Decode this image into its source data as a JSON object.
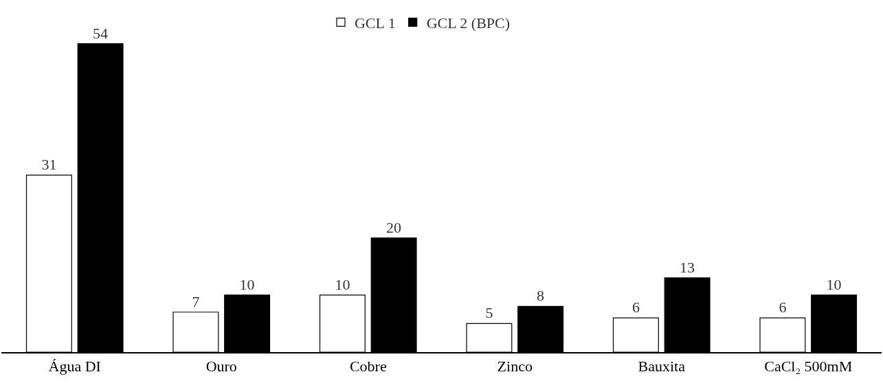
{
  "chart_data": {
    "type": "bar",
    "categories": [
      "Água DI",
      "Ouro",
      "Cobre",
      "Zinco",
      "Bauxita",
      "CaCl₂ 500mM"
    ],
    "series": [
      {
        "name": "GCL 1",
        "color": "#ffffff",
        "values": [
          31,
          7,
          10,
          5,
          6,
          6
        ]
      },
      {
        "name": "GCL 2 (BPC)",
        "color": "#000000",
        "values": [
          54,
          10,
          20,
          8,
          13,
          10
        ]
      }
    ],
    "data_labels": true,
    "legend": "top",
    "grid": false,
    "tick_labels": "x"
  }
}
